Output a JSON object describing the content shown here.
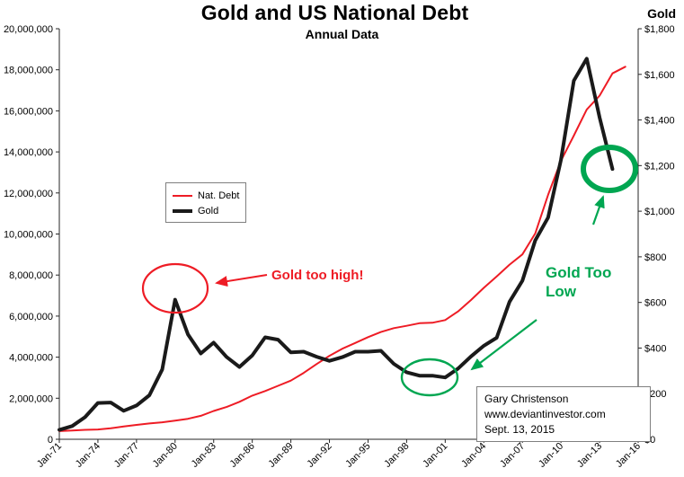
{
  "chart_data": {
    "type": "line",
    "title": "Gold and US National Debt",
    "subtitle": "Annual Data",
    "right_axis_title": "Gold",
    "x_range": [
      1971,
      2016
    ],
    "x_tick_years": [
      1971,
      1974,
      1977,
      1980,
      1983,
      1986,
      1989,
      1992,
      1995,
      1998,
      2001,
      2004,
      2007,
      2010,
      2013,
      2016
    ],
    "x_tick_labels": [
      "Jan-71",
      "Jan-74",
      "Jan-77",
      "Jan-80",
      "Jan-83",
      "Jan-86",
      "Jan-89",
      "Jan-92",
      "Jan-95",
      "Jan-98",
      "Jan-01",
      "Jan-04",
      "Jan-07",
      "Jan-10",
      "Jan-13",
      "Jan-16"
    ],
    "left_axis": {
      "min": 0,
      "max": 20000000,
      "tick_labels_top_to_bottom": [
        "20,000,000",
        "18,000,000",
        "16,000,000",
        "14,000,000",
        "12,000,000",
        "10,000,000",
        "8,000,000",
        "6,000,000",
        "4,000,000",
        "2,000,000",
        "0"
      ]
    },
    "right_axis": {
      "min": 0,
      "max": 1800,
      "tick_labels_top_to_bottom": [
        "$1,800",
        "$1,600",
        "$1,400",
        "$1,200",
        "$1,000",
        "$800",
        "$600",
        "$400",
        "$200",
        "$0"
      ]
    },
    "series": [
      {
        "name": "Nat. Debt",
        "axis": "left",
        "color": "#ee1c25",
        "width": 2,
        "start_year": 1971,
        "values": [
          398000,
          427000,
          458000,
          475000,
          533000,
          620000,
          699000,
          772000,
          827000,
          908000,
          998000,
          1142000,
          1377000,
          1572000,
          1823000,
          2125000,
          2350000,
          2602000,
          2857000,
          3233000,
          3665000,
          4065000,
          4411000,
          4693000,
          4974000,
          5225000,
          5413000,
          5526000,
          5656000,
          5674000,
          5807000,
          6228000,
          6783000,
          7379000,
          7933000,
          8507000,
          9008000,
          10025000,
          11910000,
          13562000,
          14790000,
          16066000,
          16738000,
          17824000,
          18150000
        ]
      },
      {
        "name": "Gold",
        "axis": "right",
        "color": "#1a1a1a",
        "width": 4,
        "start_year": 1971,
        "values": [
          41,
          58,
          97,
          159,
          161,
          125,
          148,
          193,
          306,
          612,
          460,
          376,
          424,
          361,
          317,
          368,
          447,
          437,
          381,
          384,
          362,
          344,
          360,
          384,
          384,
          388,
          331,
          294,
          279,
          279,
          271,
          310,
          363,
          410,
          445,
          603,
          695,
          872,
          972,
          1225,
          1572,
          1669,
          1411,
          1185
        ]
      }
    ],
    "legend_position": "inner-left",
    "grid": "off",
    "annotations": {
      "gold_too_high": {
        "text": "Gold too high!",
        "color": "#ee1c25"
      },
      "gold_too_low": {
        "text": "Gold Too Low",
        "color": "#00a651"
      },
      "attribution": {
        "lines": [
          "Gary Christenson",
          "www.deviantinvestor.com",
          "Sept. 13, 2015"
        ]
      }
    }
  }
}
